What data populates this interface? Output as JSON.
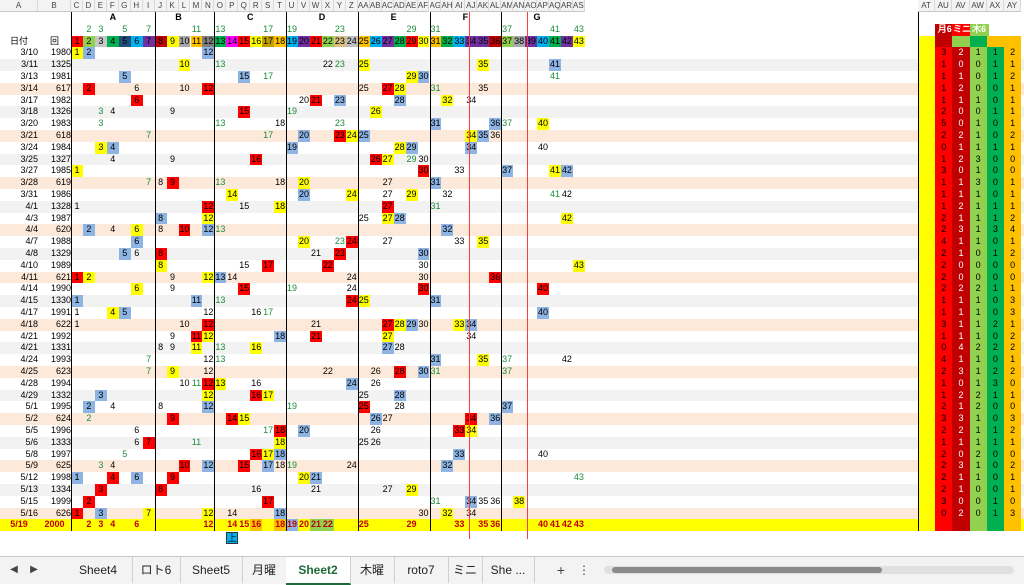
{
  "sheet": {
    "column_letters": [
      "A",
      "B",
      "C",
      "D",
      "E",
      "F",
      "G",
      "H",
      "I",
      "J",
      "K",
      "L",
      "M",
      "N",
      "O",
      "P",
      "Q",
      "R",
      "S",
      "T",
      "U",
      "V",
      "W",
      "X",
      "Y",
      "Z",
      "AA",
      "AB",
      "AC",
      "AD",
      "AE",
      "AF",
      "AG",
      "AH",
      "AI",
      "AJ",
      "AK",
      "AL",
      "AM",
      "AN",
      "AO",
      "AP",
      "AQ",
      "AR",
      "AS",
      "AT",
      "AU",
      "AV",
      "AW",
      "AX",
      "AY"
    ],
    "group_labels": [
      "A",
      "B",
      "C",
      "D",
      "E",
      "F",
      "G"
    ],
    "header_date": "日付",
    "header_round": "回",
    "right_headers": [
      "月6",
      "ミニ",
      "木6"
    ],
    "header_row2_numbers": [
      "2",
      "3",
      "5",
      "7",
      "11",
      "13",
      "17",
      "19",
      "23",
      "29",
      "31",
      "37",
      "41",
      "43"
    ],
    "header_row3_numbers": [
      "1",
      "2",
      "3",
      "4",
      "5",
      "6",
      "7",
      "8",
      "9",
      "10",
      "11",
      "12",
      "13",
      "14",
      "15",
      "16",
      "17",
      "18",
      "19",
      "20",
      "21",
      "22",
      "23",
      "24",
      "25",
      "26",
      "27",
      "28",
      "29",
      "30",
      "31",
      "32",
      "33",
      "34",
      "35",
      "36",
      "37",
      "38",
      "39",
      "40",
      "41",
      "42",
      "43"
    ],
    "rows": [
      {
        "date": "3/10",
        "no": "1980",
        "marks": [
          "1",
          "2",
          "12"
        ],
        "counts": [
          "3",
          "2",
          "1",
          "1",
          "2"
        ]
      },
      {
        "date": "3/11",
        "no": "1325",
        "marks": [
          "10",
          "13",
          "22",
          "23",
          "25",
          "35",
          "41"
        ],
        "counts": [
          "1",
          "0",
          "0",
          "1",
          "1"
        ]
      },
      {
        "date": "3/13",
        "no": "1981",
        "marks": [
          "5",
          "15",
          "17",
          "29",
          "30",
          "41"
        ],
        "counts": [
          "1",
          "1",
          "0",
          "1",
          "2"
        ]
      },
      {
        "date": "3/14",
        "no": "617",
        "marks": [
          "2",
          "6",
          "10",
          "12",
          "25",
          "27",
          "28",
          "31",
          "35"
        ],
        "counts": [
          "1",
          "2",
          "0",
          "0",
          "1"
        ]
      },
      {
        "date": "3/17",
        "no": "1982",
        "marks": [
          "6",
          "20",
          "21",
          "23",
          "28",
          "32",
          "34"
        ],
        "counts": [
          "1",
          "1",
          "1",
          "0",
          "1"
        ]
      },
      {
        "date": "3/18",
        "no": "1326",
        "marks": [
          "3",
          "4",
          "9",
          "15",
          "19",
          "26"
        ],
        "counts": [
          "2",
          "0",
          "0",
          "1",
          "1"
        ]
      },
      {
        "date": "3/20",
        "no": "1983",
        "marks": [
          "3",
          "13",
          "18",
          "23",
          "31",
          "36",
          "37",
          "40"
        ],
        "counts": [
          "5",
          "0",
          "1",
          "0",
          "1"
        ]
      },
      {
        "date": "3/21",
        "no": "618",
        "marks": [
          "7",
          "17",
          "20",
          "23",
          "24",
          "25",
          "34",
          "35",
          "36"
        ],
        "counts": [
          "2",
          "2",
          "1",
          "0",
          "2"
        ]
      },
      {
        "date": "3/24",
        "no": "1984",
        "marks": [
          "3",
          "4",
          "19",
          "28",
          "29",
          "34",
          "40"
        ],
        "counts": [
          "0",
          "1",
          "1",
          "1",
          "1"
        ]
      },
      {
        "date": "3/25",
        "no": "1327",
        "marks": [
          "4",
          "9",
          "16",
          "26",
          "27",
          "29",
          "30"
        ],
        "counts": [
          "1",
          "2",
          "3",
          "0",
          "0"
        ]
      },
      {
        "date": "3/27",
        "no": "1985",
        "marks": [
          "1",
          "30",
          "33",
          "37",
          "41",
          "42"
        ],
        "counts": [
          "3",
          "0",
          "1",
          "0",
          "0"
        ]
      },
      {
        "date": "3/28",
        "no": "619",
        "marks": [
          "7",
          "8",
          "9",
          "13",
          "18",
          "20",
          "27",
          "31"
        ],
        "counts": [
          "1",
          "1",
          "3",
          "0",
          "1"
        ]
      },
      {
        "date": "3/31",
        "no": "1986",
        "marks": [
          "14",
          "20",
          "24",
          "27",
          "29",
          "32",
          "41",
          "42"
        ],
        "counts": [
          "1",
          "1",
          "1",
          "0",
          "1"
        ]
      },
      {
        "date": "4/1",
        "no": "1328",
        "marks": [
          "1",
          "12",
          "15",
          "18",
          "27",
          "31"
        ],
        "counts": [
          "1",
          "2",
          "1",
          "1",
          "1"
        ]
      },
      {
        "date": "4/3",
        "no": "1987",
        "marks": [
          "8",
          "12",
          "25",
          "27",
          "28",
          "42"
        ],
        "counts": [
          "2",
          "1",
          "1",
          "1",
          "2"
        ]
      },
      {
        "date": "4/4",
        "no": "620",
        "marks": [
          "2",
          "4",
          "6",
          "8",
          "10",
          "12",
          "13",
          "32"
        ],
        "counts": [
          "2",
          "3",
          "1",
          "3",
          "4"
        ]
      },
      {
        "date": "4/7",
        "no": "1988",
        "marks": [
          "6",
          "20",
          "23",
          "24",
          "27",
          "33",
          "35"
        ],
        "counts": [
          "4",
          "1",
          "1",
          "0",
          "1"
        ]
      },
      {
        "date": "4/8",
        "no": "1329",
        "marks": [
          "5",
          "6",
          "8",
          "21",
          "23",
          "30"
        ],
        "counts": [
          "2",
          "1",
          "0",
          "1",
          "2"
        ]
      },
      {
        "date": "4/10",
        "no": "1989",
        "marks": [
          "8",
          "15",
          "17",
          "22",
          "30",
          "43"
        ],
        "counts": [
          "2",
          "0",
          "0",
          "0",
          "0"
        ]
      },
      {
        "date": "4/11",
        "no": "621",
        "marks": [
          "1",
          "2",
          "9",
          "12",
          "13",
          "14",
          "24",
          "30",
          "36"
        ],
        "counts": [
          "2",
          "0",
          "0",
          "0",
          "0"
        ]
      },
      {
        "date": "4/14",
        "no": "1990",
        "marks": [
          "6",
          "9",
          "15",
          "19",
          "24",
          "30",
          "40"
        ],
        "counts": [
          "2",
          "2",
          "2",
          "1",
          "1"
        ]
      },
      {
        "date": "4/15",
        "no": "1330",
        "marks": [
          "1",
          "11",
          "13",
          "24",
          "25",
          "31"
        ],
        "counts": [
          "1",
          "1",
          "1",
          "0",
          "3"
        ]
      },
      {
        "date": "4/17",
        "no": "1991",
        "marks": [
          "1",
          "4",
          "5",
          "12",
          "16",
          "17",
          "40"
        ],
        "counts": [
          "1",
          "1",
          "1",
          "0",
          "3"
        ]
      },
      {
        "date": "4/18",
        "no": "622",
        "marks": [
          "1",
          "10",
          "12",
          "21",
          "27",
          "28",
          "29",
          "30",
          "33",
          "34"
        ],
        "counts": [
          "3",
          "1",
          "1",
          "2",
          "1"
        ]
      },
      {
        "date": "4/21",
        "no": "1992",
        "marks": [
          "9",
          "11",
          "12",
          "18",
          "21",
          "27",
          "34"
        ],
        "counts": [
          "1",
          "1",
          "1",
          "0",
          "2"
        ]
      },
      {
        "date": "4/21",
        "no": "1331",
        "marks": [
          "8",
          "9",
          "11",
          "13",
          "16",
          "27",
          "28"
        ],
        "counts": [
          "0",
          "4",
          "2",
          "2",
          "2"
        ]
      },
      {
        "date": "4/24",
        "no": "1993",
        "marks": [
          "7",
          "12",
          "13",
          "31",
          "35",
          "37",
          "42"
        ],
        "counts": [
          "4",
          "1",
          "1",
          "0",
          "1"
        ]
      },
      {
        "date": "4/25",
        "no": "623",
        "marks": [
          "7",
          "9",
          "12",
          "22",
          "26",
          "28",
          "30",
          "31",
          "37"
        ],
        "counts": [
          "2",
          "3",
          "1",
          "2",
          "2"
        ]
      },
      {
        "date": "4/28",
        "no": "1994",
        "marks": [
          "10",
          "11",
          "12",
          "13",
          "16",
          "24",
          "26"
        ],
        "counts": [
          "1",
          "0",
          "1",
          "3",
          "0"
        ]
      },
      {
        "date": "4/29",
        "no": "1332",
        "marks": [
          "3",
          "12",
          "16",
          "17",
          "25",
          "28"
        ],
        "counts": [
          "1",
          "2",
          "2",
          "1",
          "1"
        ]
      },
      {
        "date": "5/1",
        "no": "1995",
        "marks": [
          "2",
          "4",
          "8",
          "12",
          "19",
          "25",
          "28",
          "37"
        ],
        "counts": [
          "2",
          "1",
          "2",
          "0",
          "0"
        ]
      },
      {
        "date": "5/2",
        "no": "624",
        "marks": [
          "2",
          "9",
          "14",
          "15",
          "26",
          "27",
          "34",
          "36"
        ],
        "counts": [
          "3",
          "3",
          "1",
          "0",
          "3"
        ]
      },
      {
        "date": "5/5",
        "no": "1996",
        "marks": [
          "6",
          "17",
          "18",
          "20",
          "26",
          "33",
          "34"
        ],
        "counts": [
          "2",
          "2",
          "1",
          "1",
          "2"
        ]
      },
      {
        "date": "5/6",
        "no": "1333",
        "marks": [
          "6",
          "7",
          "11",
          "18",
          "25",
          "26"
        ],
        "counts": [
          "1",
          "1",
          "1",
          "1",
          "1"
        ]
      },
      {
        "date": "5/8",
        "no": "1997",
        "marks": [
          "5",
          "16",
          "17",
          "18",
          "33",
          "40"
        ],
        "counts": [
          "2",
          "0",
          "2",
          "0",
          "0"
        ]
      },
      {
        "date": "5/9",
        "no": "625",
        "marks": [
          "3",
          "4",
          "10",
          "12",
          "15",
          "17",
          "18",
          "19",
          "24",
          "32"
        ],
        "counts": [
          "2",
          "3",
          "1",
          "0",
          "2"
        ]
      },
      {
        "date": "5/12",
        "no": "1998",
        "marks": [
          "1",
          "4",
          "6",
          "9",
          "20",
          "21",
          "43"
        ],
        "counts": [
          "2",
          "1",
          "1",
          "0",
          "1"
        ]
      },
      {
        "date": "5/13",
        "no": "1334",
        "marks": [
          "3",
          "8",
          "16",
          "21",
          "27",
          "29"
        ],
        "counts": [
          "2",
          "1",
          "0",
          "0",
          "1"
        ]
      },
      {
        "date": "5/15",
        "no": "1999",
        "marks": [
          "2",
          "17",
          "31",
          "34",
          "35",
          "36",
          "38"
        ],
        "counts": [
          "3",
          "0",
          "0",
          "1",
          "0"
        ]
      },
      {
        "date": "5/16",
        "no": "626",
        "marks": [
          "1",
          "3",
          "7",
          "12",
          "14",
          "18",
          "30",
          "32",
          "34"
        ],
        "counts": [
          "0",
          "2",
          "0",
          "1",
          "3"
        ]
      }
    ],
    "total_row": {
      "date": "5/19",
      "no": "2000",
      "marks": [
        "2",
        "3",
        "4",
        "6",
        "12",
        "14",
        "15",
        "16",
        "18",
        "19",
        "20",
        "21",
        "22",
        "25",
        "29",
        "33",
        "35",
        "36",
        "40",
        "41",
        "42",
        "43"
      ]
    },
    "below_label": "上"
  },
  "tabs": [
    "Sheet4",
    "ロト6",
    "Sheet5",
    "月曜",
    "Sheet2",
    "木曜",
    "roto7",
    "ミニ",
    "She ..."
  ],
  "active_tab": "Sheet2",
  "add_sheet": "+",
  "more": "⋮",
  "colors": {
    "red": "#ff0000",
    "yellow": "#ffff00",
    "blue": "#8db4e2",
    "green": "#92d050",
    "orange": "#ffc000",
    "header_red": "#c00000",
    "highlight_row": "#fde9d9"
  }
}
